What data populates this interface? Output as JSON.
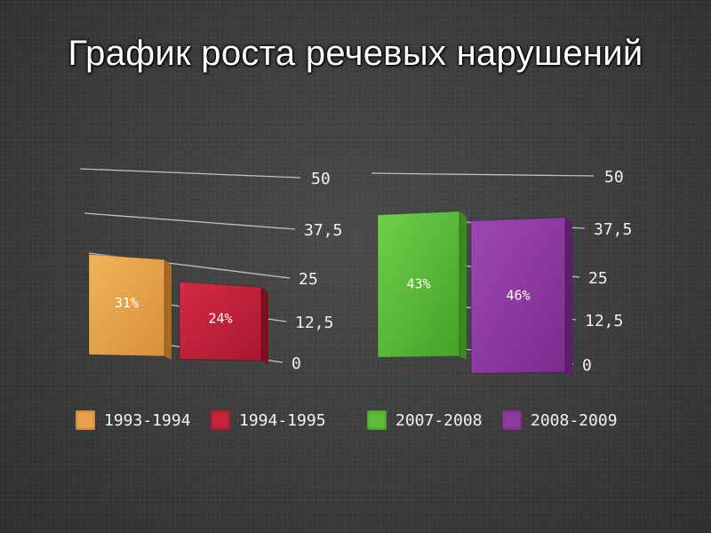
{
  "title": "График роста речевых нарушений",
  "colors": {
    "orange": "#e8a24a",
    "red": "#c8213a",
    "green": "#5cbd3a",
    "purple": "#8e3aa0",
    "axis_text": "#f0f0f0",
    "grid": "#d8d8d8"
  },
  "chart_data": [
    {
      "type": "bar",
      "yticks": [
        "0",
        "12,5",
        "25",
        "37,5",
        "50"
      ],
      "ylim": [
        0,
        50
      ],
      "grid": true,
      "categories": [
        "1993-1994",
        "1994-1995"
      ],
      "values": [
        31,
        24
      ],
      "data_labels": [
        "31%",
        "24%"
      ]
    },
    {
      "type": "bar",
      "yticks": [
        "0",
        "12,5",
        "25",
        "37,5",
        "50"
      ],
      "ylim": [
        0,
        50
      ],
      "grid": true,
      "categories": [
        "2007-2008",
        "2008-2009"
      ],
      "values": [
        43,
        46
      ],
      "data_labels": [
        "43%",
        "46%"
      ]
    }
  ],
  "legend": [
    {
      "label": "1993-1994",
      "color": "#e8a24a"
    },
    {
      "label": "1994-1995",
      "color": "#c8213a"
    },
    {
      "label": "2007-2008",
      "color": "#5cbd3a"
    },
    {
      "label": "2008-2009",
      "color": "#8e3aa0"
    }
  ]
}
